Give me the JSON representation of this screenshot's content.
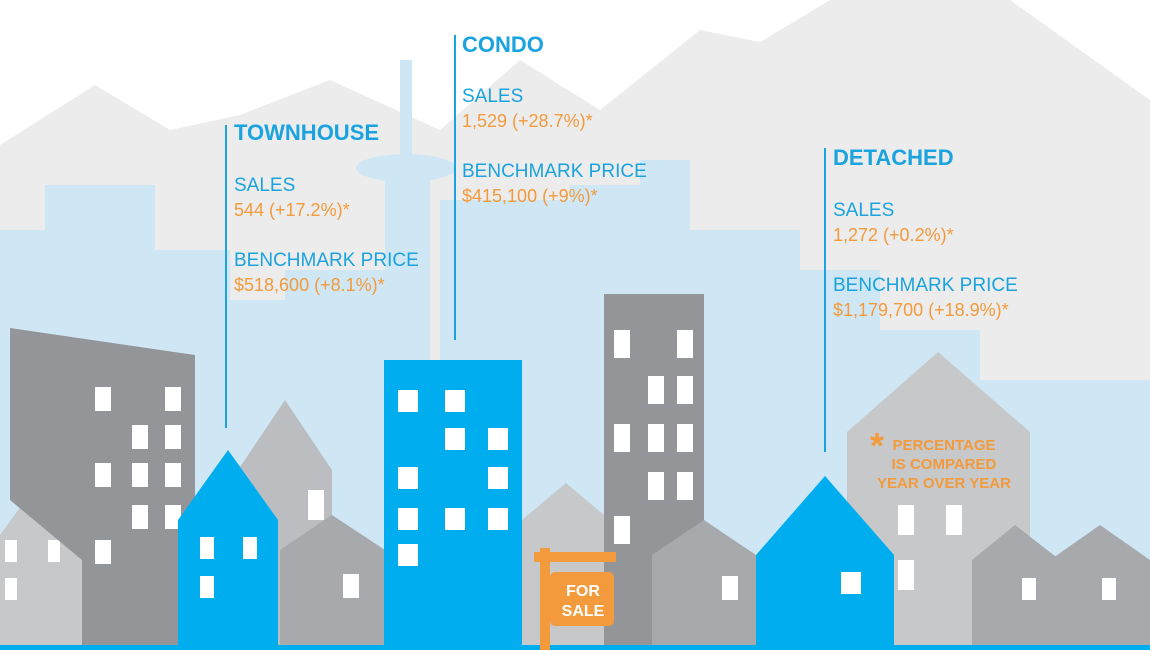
{
  "segments": [
    {
      "title": "TOWNHOUSE",
      "sales_label": "SALES",
      "sales": "544 (+17.2%)*",
      "price_label": "BENCHMARK PRICE",
      "price": "$518,600 (+8.1%)*"
    },
    {
      "title": "CONDO",
      "sales_label": "SALES",
      "sales": "1,529 (+28.7%)*",
      "price_label": "BENCHMARK PRICE",
      "price": "$415,100 (+9%)*"
    },
    {
      "title": "DETACHED",
      "sales_label": "SALES",
      "sales": "1,272 (+0.2%)*",
      "price_label": "BENCHMARK PRICE",
      "price": "$1,179,700 (+18.9%)*"
    }
  ],
  "footnote": {
    "mark": "*",
    "lines": [
      "PERCENTAGE",
      "IS COMPARED",
      "YEAR OVER YEAR"
    ]
  },
  "sign": {
    "lines": [
      "FOR",
      "SALE"
    ]
  }
}
